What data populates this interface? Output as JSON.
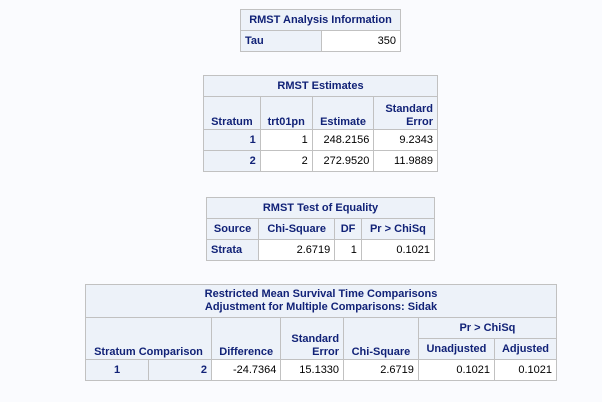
{
  "info": {
    "title": "RMST Analysis Information",
    "row_label": "Tau",
    "row_value": "350"
  },
  "estimates": {
    "title": "RMST Estimates",
    "headers": [
      "Stratum",
      "trt01pn",
      "Estimate",
      "Standard",
      "Error"
    ],
    "rows": [
      {
        "stratum": "1",
        "trt": "1",
        "estimate": "248.2156",
        "se": "9.2343"
      },
      {
        "stratum": "2",
        "trt": "2",
        "estimate": "272.9520",
        "se": "11.9889"
      }
    ]
  },
  "test": {
    "title": "RMST Test of Equality",
    "headers": [
      "Source",
      "Chi-Square",
      "DF",
      "Pr > ChiSq"
    ],
    "row": {
      "source": "Strata",
      "chisq": "2.6719",
      "df": "1",
      "p": "0.1021"
    }
  },
  "comparisons": {
    "title_line1": "Restricted Mean Survival Time Comparisons",
    "title_line2": "Adjustment for Multiple Comparisons: Sidak",
    "group_header": "Pr > ChiSq",
    "headers": {
      "stratum_comparison": "Stratum Comparison",
      "difference": "Difference",
      "se_line1": "Standard",
      "se_line2": "Error",
      "chisq": "Chi-Square",
      "unadjusted": "Unadjusted",
      "adjusted": "Adjusted"
    },
    "row": {
      "s1": "1",
      "s2": "2",
      "difference": "-24.7364",
      "se": "15.1330",
      "chisq": "2.6719",
      "unadjusted": "0.1021",
      "adjusted": "0.1021"
    }
  }
}
